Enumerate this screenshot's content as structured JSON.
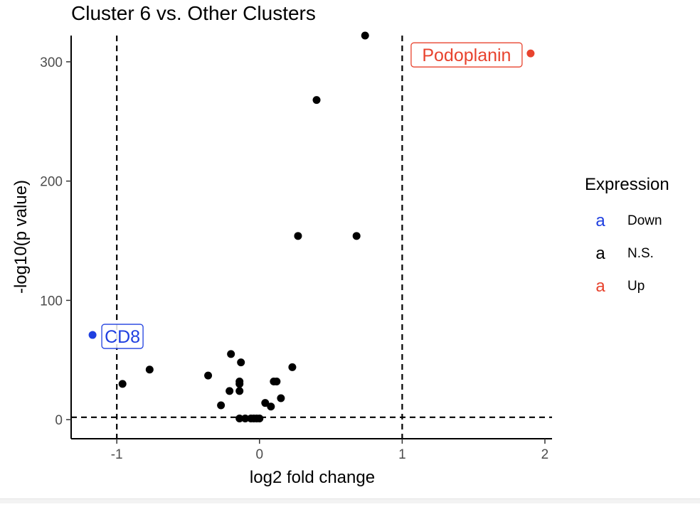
{
  "chart_data": {
    "type": "scatter",
    "title": "Cluster  6  vs. Other Clusters",
    "xlabel": "log2 fold change",
    "ylabel": "-log10(p value)",
    "xlim": [
      -1.32,
      2.05
    ],
    "ylim": [
      -16,
      322
    ],
    "x_ticks": [
      -1,
      0,
      1,
      2
    ],
    "x_tick_labels": [
      "-1",
      "0",
      "1",
      "2"
    ],
    "y_ticks": [
      0,
      100,
      200,
      300
    ],
    "y_tick_labels": [
      "0",
      "100",
      "200",
      "300"
    ],
    "grid": false,
    "threshold_lines": {
      "x": [
        -1,
        1
      ],
      "y": [
        2
      ]
    },
    "legend": {
      "title": "Expression",
      "position": "right",
      "entries": [
        {
          "key": "a",
          "label": "Down",
          "color": "#1f3fe0"
        },
        {
          "key": "a",
          "label": "N.S.",
          "color": "#000000"
        },
        {
          "key": "a",
          "label": "Up",
          "color": "#e8432e"
        }
      ]
    },
    "series": [
      {
        "name": "Down",
        "color": "#1f3fe0",
        "points": [
          {
            "x": -1.17,
            "y": 71,
            "label": "CD8"
          }
        ]
      },
      {
        "name": "N.S.",
        "color": "#000000",
        "points": [
          {
            "x": 0.74,
            "y": 322
          },
          {
            "x": 0.4,
            "y": 268
          },
          {
            "x": 0.27,
            "y": 154
          },
          {
            "x": 0.68,
            "y": 154
          },
          {
            "x": -0.96,
            "y": 30
          },
          {
            "x": -0.77,
            "y": 42
          },
          {
            "x": -0.36,
            "y": 37
          },
          {
            "x": -0.2,
            "y": 55
          },
          {
            "x": -0.13,
            "y": 48
          },
          {
            "x": 0.23,
            "y": 44
          },
          {
            "x": -0.14,
            "y": 32
          },
          {
            "x": -0.14,
            "y": 30
          },
          {
            "x": -0.21,
            "y": 24
          },
          {
            "x": -0.14,
            "y": 24
          },
          {
            "x": 0.1,
            "y": 32
          },
          {
            "x": 0.12,
            "y": 32
          },
          {
            "x": 0.15,
            "y": 18
          },
          {
            "x": 0.04,
            "y": 14
          },
          {
            "x": 0.08,
            "y": 11
          },
          {
            "x": -0.27,
            "y": 12
          },
          {
            "x": -0.14,
            "y": 1
          },
          {
            "x": -0.1,
            "y": 1
          },
          {
            "x": -0.06,
            "y": 1
          },
          {
            "x": -0.04,
            "y": 1
          },
          {
            "x": -0.02,
            "y": 1
          },
          {
            "x": 0.0,
            "y": 1
          }
        ]
      },
      {
        "name": "Up",
        "color": "#e8432e",
        "points": [
          {
            "x": 1.9,
            "y": 307,
            "label": "Podoplanin"
          }
        ]
      }
    ]
  }
}
